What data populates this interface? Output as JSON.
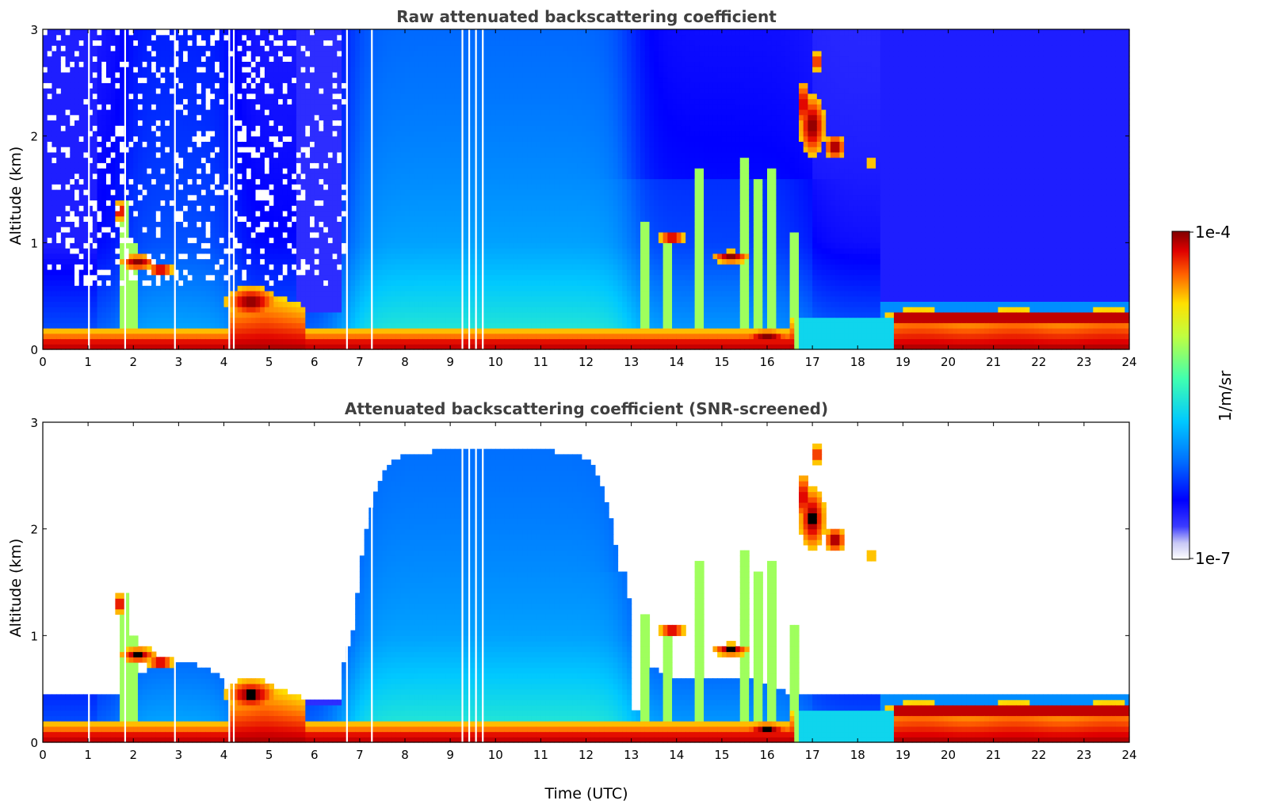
{
  "chart_data": [
    {
      "type": "heatmap",
      "title": "Raw attenuated backscattering coefficient",
      "xlabel": "",
      "ylabel": "Altitude (km)",
      "xlim": [
        0,
        24
      ],
      "ylim": [
        0,
        3
      ],
      "xticks": [
        "0",
        "1",
        "2",
        "3",
        "4",
        "5",
        "6",
        "7",
        "8",
        "9",
        "10",
        "11",
        "12",
        "13",
        "14",
        "15",
        "16",
        "17",
        "18",
        "19",
        "20",
        "21",
        "22",
        "23",
        "24"
      ],
      "yticks": [
        "0",
        "1",
        "2",
        "3"
      ],
      "screened": false
    },
    {
      "type": "heatmap",
      "title": "Attenuated backscattering coefficient (SNR-screened)",
      "xlabel": "Time (UTC)",
      "ylabel": "Altitude (km)",
      "xlim": [
        0,
        24
      ],
      "ylim": [
        0,
        3
      ],
      "xticks": [
        "0",
        "1",
        "2",
        "3",
        "4",
        "5",
        "6",
        "7",
        "8",
        "9",
        "10",
        "11",
        "12",
        "13",
        "14",
        "15",
        "16",
        "17",
        "18",
        "19",
        "20",
        "21",
        "22",
        "23",
        "24"
      ],
      "yticks": [
        "0",
        "1",
        "2",
        "3"
      ],
      "screened": true
    }
  ],
  "colorbar": {
    "label": "1/m/sr",
    "max_label": "1e-4",
    "min_label": "1e-7",
    "scale": "log"
  }
}
